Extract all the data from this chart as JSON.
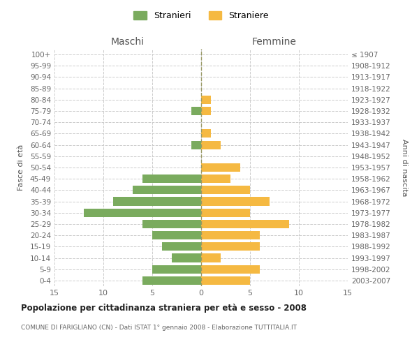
{
  "age_groups": [
    "0-4",
    "5-9",
    "10-14",
    "15-19",
    "20-24",
    "25-29",
    "30-34",
    "35-39",
    "40-44",
    "45-49",
    "50-54",
    "55-59",
    "60-64",
    "65-69",
    "70-74",
    "75-79",
    "80-84",
    "85-89",
    "90-94",
    "95-99",
    "100+"
  ],
  "birth_years": [
    "2003-2007",
    "1998-2002",
    "1993-1997",
    "1988-1992",
    "1983-1987",
    "1978-1982",
    "1973-1977",
    "1968-1972",
    "1963-1967",
    "1958-1962",
    "1953-1957",
    "1948-1952",
    "1943-1947",
    "1938-1942",
    "1933-1937",
    "1928-1932",
    "1923-1927",
    "1918-1922",
    "1913-1917",
    "1908-1912",
    "≤ 1907"
  ],
  "males": [
    6,
    5,
    3,
    4,
    5,
    6,
    12,
    9,
    7,
    6,
    0,
    0,
    1,
    0,
    0,
    1,
    0,
    0,
    0,
    0,
    0
  ],
  "females": [
    5,
    6,
    2,
    6,
    6,
    9,
    5,
    7,
    5,
    3,
    4,
    0,
    2,
    1,
    0,
    1,
    1,
    0,
    0,
    0,
    0
  ],
  "male_color": "#7aab5e",
  "female_color": "#f5b942",
  "title": "Popolazione per cittadinanza straniera per età e sesso - 2008",
  "subtitle": "COMUNE DI FARIGLIANO (CN) - Dati ISTAT 1° gennaio 2008 - Elaborazione TUTTITALIA.IT",
  "xlabel_left": "Maschi",
  "xlabel_right": "Femmine",
  "ylabel_left": "Fasce di età",
  "ylabel_right": "Anni di nascita",
  "legend_male": "Stranieri",
  "legend_female": "Straniere",
  "xlim": 15,
  "bar_height": 0.75,
  "background_color": "#ffffff",
  "grid_color": "#cccccc",
  "axis_label_color": "#555555",
  "tick_label_color": "#666666"
}
